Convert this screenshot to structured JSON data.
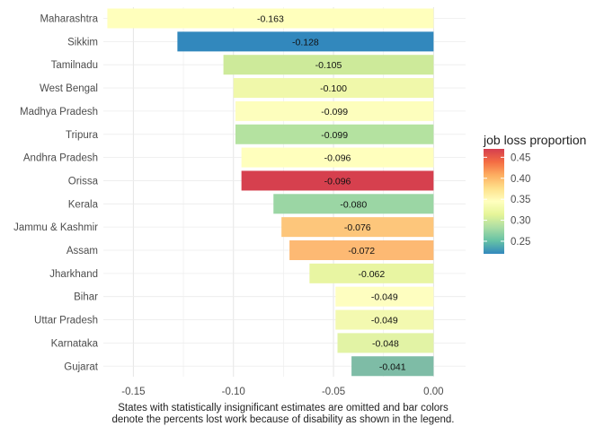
{
  "chart_data": {
    "type": "bar",
    "orientation": "horizontal",
    "categories": [
      "Maharashtra",
      "Sikkim",
      "Tamilnadu",
      "West Bengal",
      "Madhya Pradesh",
      "Tripura",
      "Andhra Pradesh",
      "Orissa",
      "Kerala",
      "Jammu & Kashmir",
      "Assam",
      "Jharkhand",
      "Bihar",
      "Uttar Pradesh",
      "Karnataka",
      "Gujarat"
    ],
    "values": [
      -0.163,
      -0.128,
      -0.105,
      -0.1,
      -0.099,
      -0.099,
      -0.096,
      -0.096,
      -0.08,
      -0.076,
      -0.072,
      -0.062,
      -0.049,
      -0.049,
      -0.048,
      -0.041
    ],
    "value_labels": [
      "-0.163",
      "-0.128",
      "-0.105",
      "-0.100",
      "-0.099",
      "-0.099",
      "-0.096",
      "-0.096",
      "-0.080",
      "-0.076",
      "-0.072",
      "-0.062",
      "-0.049",
      "-0.049",
      "-0.048",
      "-0.041"
    ],
    "fill_values": [
      0.345,
      0.22,
      0.3,
      0.33,
      0.335,
      0.29,
      0.345,
      0.465,
      0.285,
      0.4,
      0.4,
      0.32,
      0.34,
      0.33,
      0.315,
      0.26
    ],
    "bar_colors": [
      "#FFFFBC",
      "#3288BD",
      "#CDEA9A",
      "#F0F8AA",
      "#FDFEBD",
      "#B4E2A0",
      "#FFFFBD",
      "#D6404E",
      "#9BD6A4",
      "#FDC67B",
      "#FDB973",
      "#E8F5A2",
      "#FEFEC0",
      "#F3F9B0",
      "#E2F3A5",
      "#7EBCA6"
    ],
    "xlim": [
      -0.165,
      0.016
    ],
    "xticks": [
      -0.15,
      -0.1,
      -0.05,
      0.0
    ],
    "xtick_labels": [
      "-0.15",
      "-0.10",
      "-0.05",
      "0.00"
    ],
    "grid": true,
    "legend": {
      "title": "job loss proportion",
      "position": "right",
      "range": [
        0.22,
        0.47
      ],
      "ticks": [
        0.45,
        0.4,
        0.35,
        0.3,
        0.25
      ],
      "tick_labels": [
        "0.45",
        "0.40",
        "0.35",
        "0.30",
        "0.25"
      ],
      "palette": [
        "#3288BD",
        "#66C2A5",
        "#ABDDA4",
        "#E6F598",
        "#FFFFBF",
        "#FEE08B",
        "#FDAE61",
        "#F46D43",
        "#D53E4F"
      ]
    },
    "caption_lines": [
      "States with statistically insignificant estimates are omitted and bar colors",
      "denote the percents lost work because of disability as shown in the legend."
    ]
  }
}
